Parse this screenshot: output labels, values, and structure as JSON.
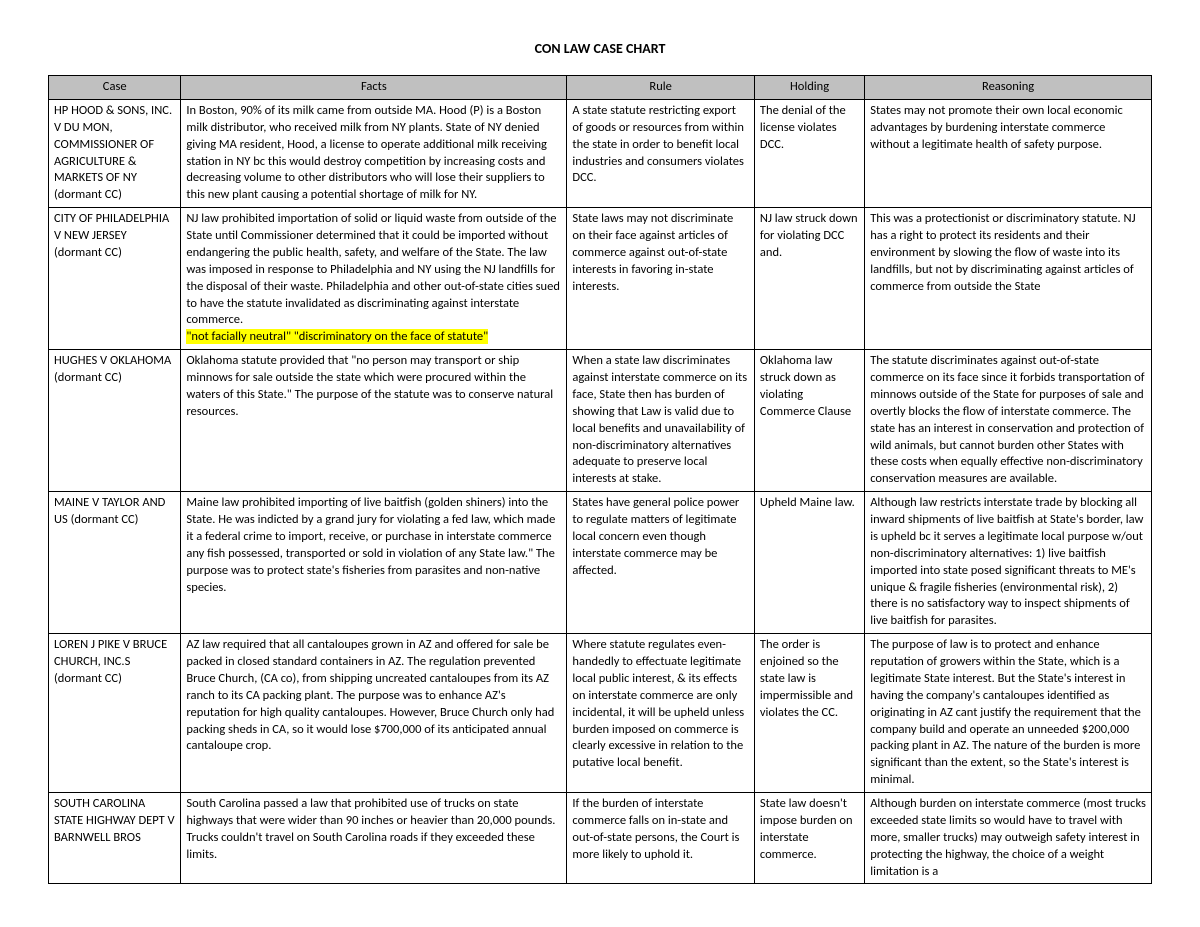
{
  "title": "CON LAW CASE CHART",
  "columns": [
    "Case",
    "Facts",
    "Rule",
    "Holding",
    "Reasoning"
  ],
  "rows": [
    {
      "case": "HP HOOD & SONS, INC. V DU MON, COMMISSIONER OF AGRICULTURE & MARKETS OF NY (dormant CC)",
      "facts": "In Boston, 90% of its milk came from outside MA. Hood (P) is a Boston milk distributor, who received milk from NY plants. State of NY denied giving MA resident, Hood, a license to operate additional milk receiving station in NY bc this would destroy competition by increasing costs and decreasing volume to other distributors who will lose their suppliers to this new plant causing a potential shortage of milk for NY.",
      "rule": "A state statute restricting export of goods or resources from within the state in order to benefit local industries and consumers violates DCC.",
      "holding": "The denial of the license violates DCC.",
      "reasoning": "States may not promote their own local economic advantages by burdening interstate commerce without a legitimate health of safety purpose."
    },
    {
      "case": "CITY OF PHILADELPHIA V NEW JERSEY (dormant CC)",
      "facts_main": "NJ law prohibited importation of solid or liquid waste from outside of the State until Commissioner determined that it could be imported without endangering the public health, safety, and welfare of the State. The law was imposed in response to Philadelphia and NY using the NJ landfills for the disposal of their waste. Philadelphia and other out-of-state cities sued to have the statute invalidated as discriminating against interstate commerce.",
      "facts_hl": "\"not facially neutral\" \"discriminatory on the face of statute\"",
      "rule": "State laws may not discriminate on their face against articles of commerce against out-of-state interests in favoring in-state interests.",
      "holding": "NJ law struck down for violating DCC and.",
      "reasoning": "This was a protectionist or discriminatory statute. NJ has a right to protect its residents and their environment by slowing the flow of waste into its landfills, but not by discriminating against articles of commerce from outside the State"
    },
    {
      "case": "HUGHES V OKLAHOMA (dormant CC)",
      "facts": "Oklahoma statute provided that \"no person may transport or ship minnows for sale outside the state which were procured within the waters of this State.\" The purpose of the statute was to conserve natural resources.",
      "rule": "When a state law discriminates against interstate commerce on its face, State then has burden of showing that Law is valid due to local benefits and unavailability of non-discriminatory alternatives adequate to preserve local interests at stake.",
      "holding": "Oklahoma law struck down as violating Commerce Clause",
      "reasoning": "The statute discriminates against out-of-state commerce on its face since it forbids transportation of minnows outside of the State for purposes of sale and overtly blocks the flow of interstate commerce. The state has an interest in conservation and protection of wild animals, but cannot burden other States with these costs when equally effective non-discriminatory conservation measures are available."
    },
    {
      "case": "MAINE V TAYLOR AND US (dormant CC)",
      "facts": "Maine law prohibited importing of live baitfish (golden shiners) into the State. He was indicted by a grand jury for violating a fed law, which made it a federal crime to import, receive, or purchase in interstate commerce any fish possessed, transported or sold in violation of any State law.\" The purpose was to protect state's fisheries from parasites and non-native species.",
      "rule": "States have general police power to regulate matters of legitimate local concern even though interstate commerce may be affected.",
      "holding": "Upheld Maine law.",
      "reasoning": "Although law restricts interstate trade by blocking all inward shipments of live baitfish at State's border, law is upheld bc it serves a legitimate local purpose w/out non-discriminatory alternatives: 1) live baitfish imported into state posed significant threats to ME's unique & fragile fisheries (environmental risk), 2) there is no satisfactory way to inspect shipments of live baitfish for parasites."
    },
    {
      "case": "LOREN J PIKE V BRUCE CHURCH, INC.S (dormant CC)",
      "facts": "AZ law required that all cantaloupes grown in AZ and offered for sale be packed in closed standard containers in AZ. The regulation prevented Bruce Church, (CA co), from shipping uncreated cantaloupes from its AZ ranch to its CA packing plant. The purpose was to enhance AZ's reputation for high quality cantaloupes. However, Bruce Church only had packing sheds in CA, so it would lose $700,000 of its anticipated annual cantaloupe crop.",
      "rule": "Where statute regulates even-handedly to effectuate legitimate local public interest, & its effects on interstate commerce are only incidental, it will be upheld unless burden imposed on commerce is clearly excessive in relation to the putative local benefit.",
      "holding": "The order is enjoined so the state law is impermissible and violates the CC.",
      "reasoning": "The purpose of law is to protect and enhance reputation of growers within the State, which is a legitimate State interest. But the State's interest in having the company's cantaloupes identified as originating in AZ cant justify the requirement that the company build and operate an unneeded $200,000 packing plant in AZ. The nature of the burden is more significant than the extent, so the State's interest is minimal."
    },
    {
      "case": "SOUTH CAROLINA STATE HIGHWAY DEPT V BARNWELL BROS",
      "facts": "South Carolina passed a law that prohibited use of trucks on state highways that were wider than 90 inches or heavier than 20,000 pounds. Trucks couldn't travel on South Carolina roads if they exceeded these limits.",
      "rule": "If the burden of interstate commerce falls on in-state and out-of-state persons, the Court is more likely to uphold it.",
      "holding": "State law doesn't impose burden on interstate commerce.",
      "reasoning": "Although burden on interstate commerce (most trucks exceeded state limits so would have to travel with more, smaller trucks) may outweigh safety interest in protecting the highway, the choice of a weight limitation is a"
    }
  ]
}
